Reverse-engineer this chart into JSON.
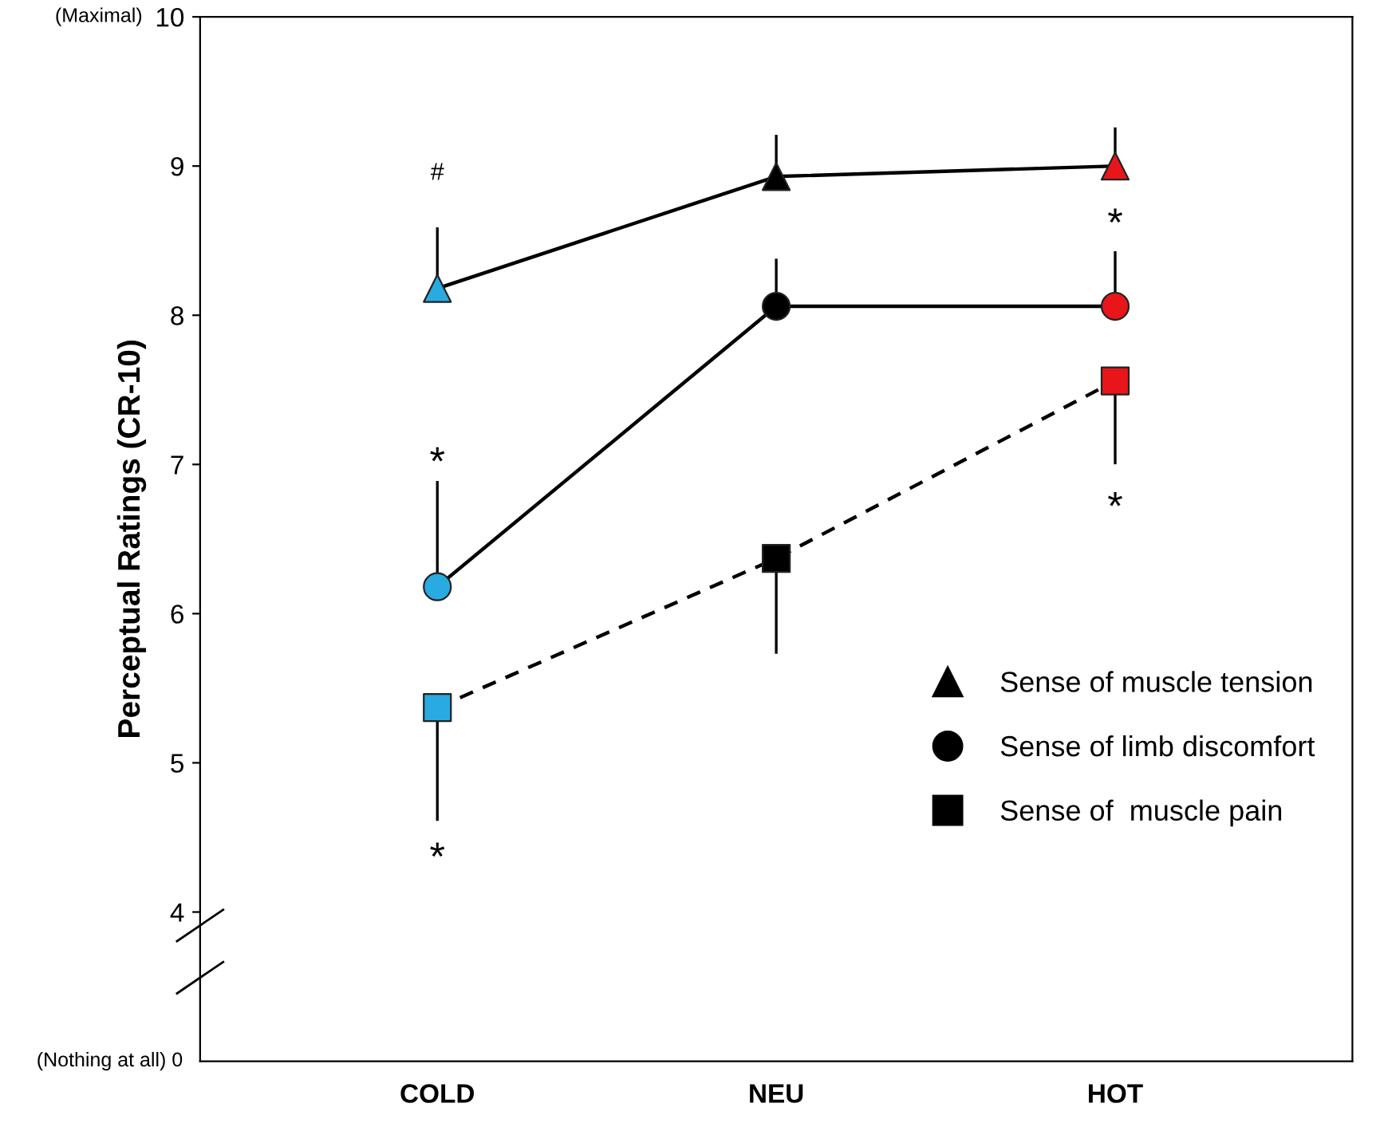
{
  "chart_data": {
    "type": "line",
    "ylabel": "Perceptual Ratings (CR-10)",
    "categories": [
      "COLD",
      "NEU",
      "HOT"
    ],
    "ylim": [
      3.0,
      10
    ],
    "yticks": [
      4,
      5,
      6,
      7,
      8,
      9,
      10
    ],
    "grid": false,
    "legend": "bottom right",
    "series": [
      {
        "name": "Sense of muscle tension",
        "color": "#000000",
        "colors": [
          "#29abe2",
          "#000000",
          "#e8161b"
        ],
        "marker": "triangle",
        "line_style": "solid",
        "values": [
          8.18,
          8.93,
          9.0
        ],
        "errors": [
          [
            8.18,
            8.58
          ],
          [
            8.93,
            9.2
          ],
          [
            9.0,
            9.25
          ]
        ]
      },
      {
        "name": "Sense of limb discomfort",
        "color": "#000000",
        "colors": [
          "#29abe2",
          "#000000",
          "#e8161b"
        ],
        "marker": "circle",
        "line_style": "solid",
        "values": [
          6.18,
          8.06,
          8.06
        ],
        "errors": [
          [
            6.18,
            6.88
          ],
          [
            8.06,
            8.37
          ],
          [
            8.06,
            8.42
          ]
        ]
      },
      {
        "name": "Sense of  muscle pain",
        "color": "#000000",
        "colors": [
          "#29abe2",
          "#000000",
          "#e8161b"
        ],
        "marker": "square",
        "line_style": "dashed",
        "values": [
          5.37,
          6.37,
          7.56
        ],
        "errors": [
          [
            4.62,
            5.37
          ],
          [
            5.74,
            6.37
          ],
          [
            7.01,
            7.56
          ]
        ]
      }
    ],
    "annotations": [
      "(Maximal)",
      "(Nothing at all) 0",
      "#",
      "*",
      "*",
      "*",
      "*"
    ]
  }
}
